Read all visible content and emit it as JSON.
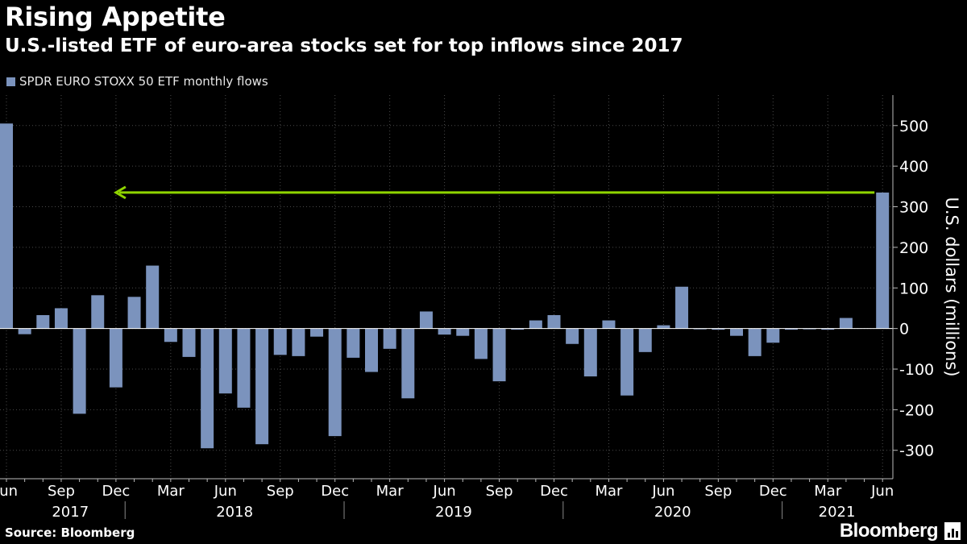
{
  "header": {
    "title": "Rising Appetite",
    "subtitle": "U.S.-listed ETF of euro-area stocks set for top inflows since 2017"
  },
  "footer": {
    "source": "Source: Bloomberg",
    "brand": "Bloomberg"
  },
  "colors": {
    "background": "#000000",
    "bar": "#7b93bd",
    "arrow": "#8fd400",
    "grid": "#4a4a4a",
    "text": "#ffffff"
  },
  "chart_data": {
    "type": "bar",
    "title": "Rising Appetite",
    "subtitle": "U.S.-listed ETF of euro-area stocks set for top inflows since 2017",
    "legend": [
      "SPDR EURO STOXX 50 ETF monthly flows"
    ],
    "legend_position": "top-left",
    "ylabel": "U.S. dollars (millions)",
    "ylim": [
      -370,
      575
    ],
    "yticks": [
      -300,
      -200,
      -100,
      0,
      100,
      200,
      300,
      400,
      500
    ],
    "ytick_labels": [
      "-300",
      "-200",
      "-100",
      "0",
      "100",
      "200",
      "300",
      "400",
      "500"
    ],
    "x_month_labels": [
      "Jun",
      "Sep",
      "Dec",
      "Mar",
      "Jun",
      "Sep",
      "Dec",
      "Mar",
      "Jun",
      "Sep",
      "Dec",
      "Mar",
      "Jun",
      "Sep",
      "Dec",
      "Mar",
      "Jun"
    ],
    "x_month_label_indices": [
      0,
      3,
      6,
      9,
      12,
      15,
      18,
      21,
      24,
      27,
      30,
      33,
      36,
      39,
      42,
      45,
      48
    ],
    "x_year_labels": [
      "2017",
      "2018",
      "2019",
      "2020",
      "2021"
    ],
    "x_year_label_indices": [
      3.5,
      12.5,
      24.5,
      36.5,
      45.5
    ],
    "year_separator_indices": [
      6.5,
      18.5,
      30.5,
      42.5
    ],
    "categories": [
      "2017-06",
      "2017-07",
      "2017-08",
      "2017-09",
      "2017-10",
      "2017-11",
      "2017-12",
      "2018-01",
      "2018-02",
      "2018-03",
      "2018-04",
      "2018-05",
      "2018-06",
      "2018-07",
      "2018-08",
      "2018-09",
      "2018-10",
      "2018-11",
      "2018-12",
      "2019-01",
      "2019-02",
      "2019-03",
      "2019-04",
      "2019-05",
      "2019-06",
      "2019-07",
      "2019-08",
      "2019-09",
      "2019-10",
      "2019-11",
      "2019-12",
      "2020-01",
      "2020-02",
      "2020-03",
      "2020-04",
      "2020-05",
      "2020-06",
      "2020-07",
      "2020-08",
      "2020-09",
      "2020-10",
      "2020-11",
      "2020-12",
      "2021-01",
      "2021-02",
      "2021-03",
      "2021-04",
      "2021-05",
      "2021-06"
    ],
    "series": [
      {
        "name": "SPDR EURO STOXX 50 ETF monthly flows",
        "values": [
          505,
          -14,
          33,
          50,
          -210,
          82,
          -145,
          78,
          155,
          -33,
          -70,
          -295,
          -160,
          -195,
          -285,
          -65,
          -68,
          -20,
          -265,
          -72,
          -107,
          -50,
          -172,
          42,
          -15,
          -18,
          -75,
          -130,
          -3,
          20,
          33,
          -38,
          -118,
          20,
          -165,
          -58,
          8,
          103,
          -2,
          -3,
          -18,
          -68,
          -35,
          -3,
          -2,
          -3,
          26,
          0,
          335
        ]
      }
    ],
    "annotation": {
      "type": "arrow",
      "value": 335,
      "from_index": 48,
      "to_index": 6
    }
  }
}
